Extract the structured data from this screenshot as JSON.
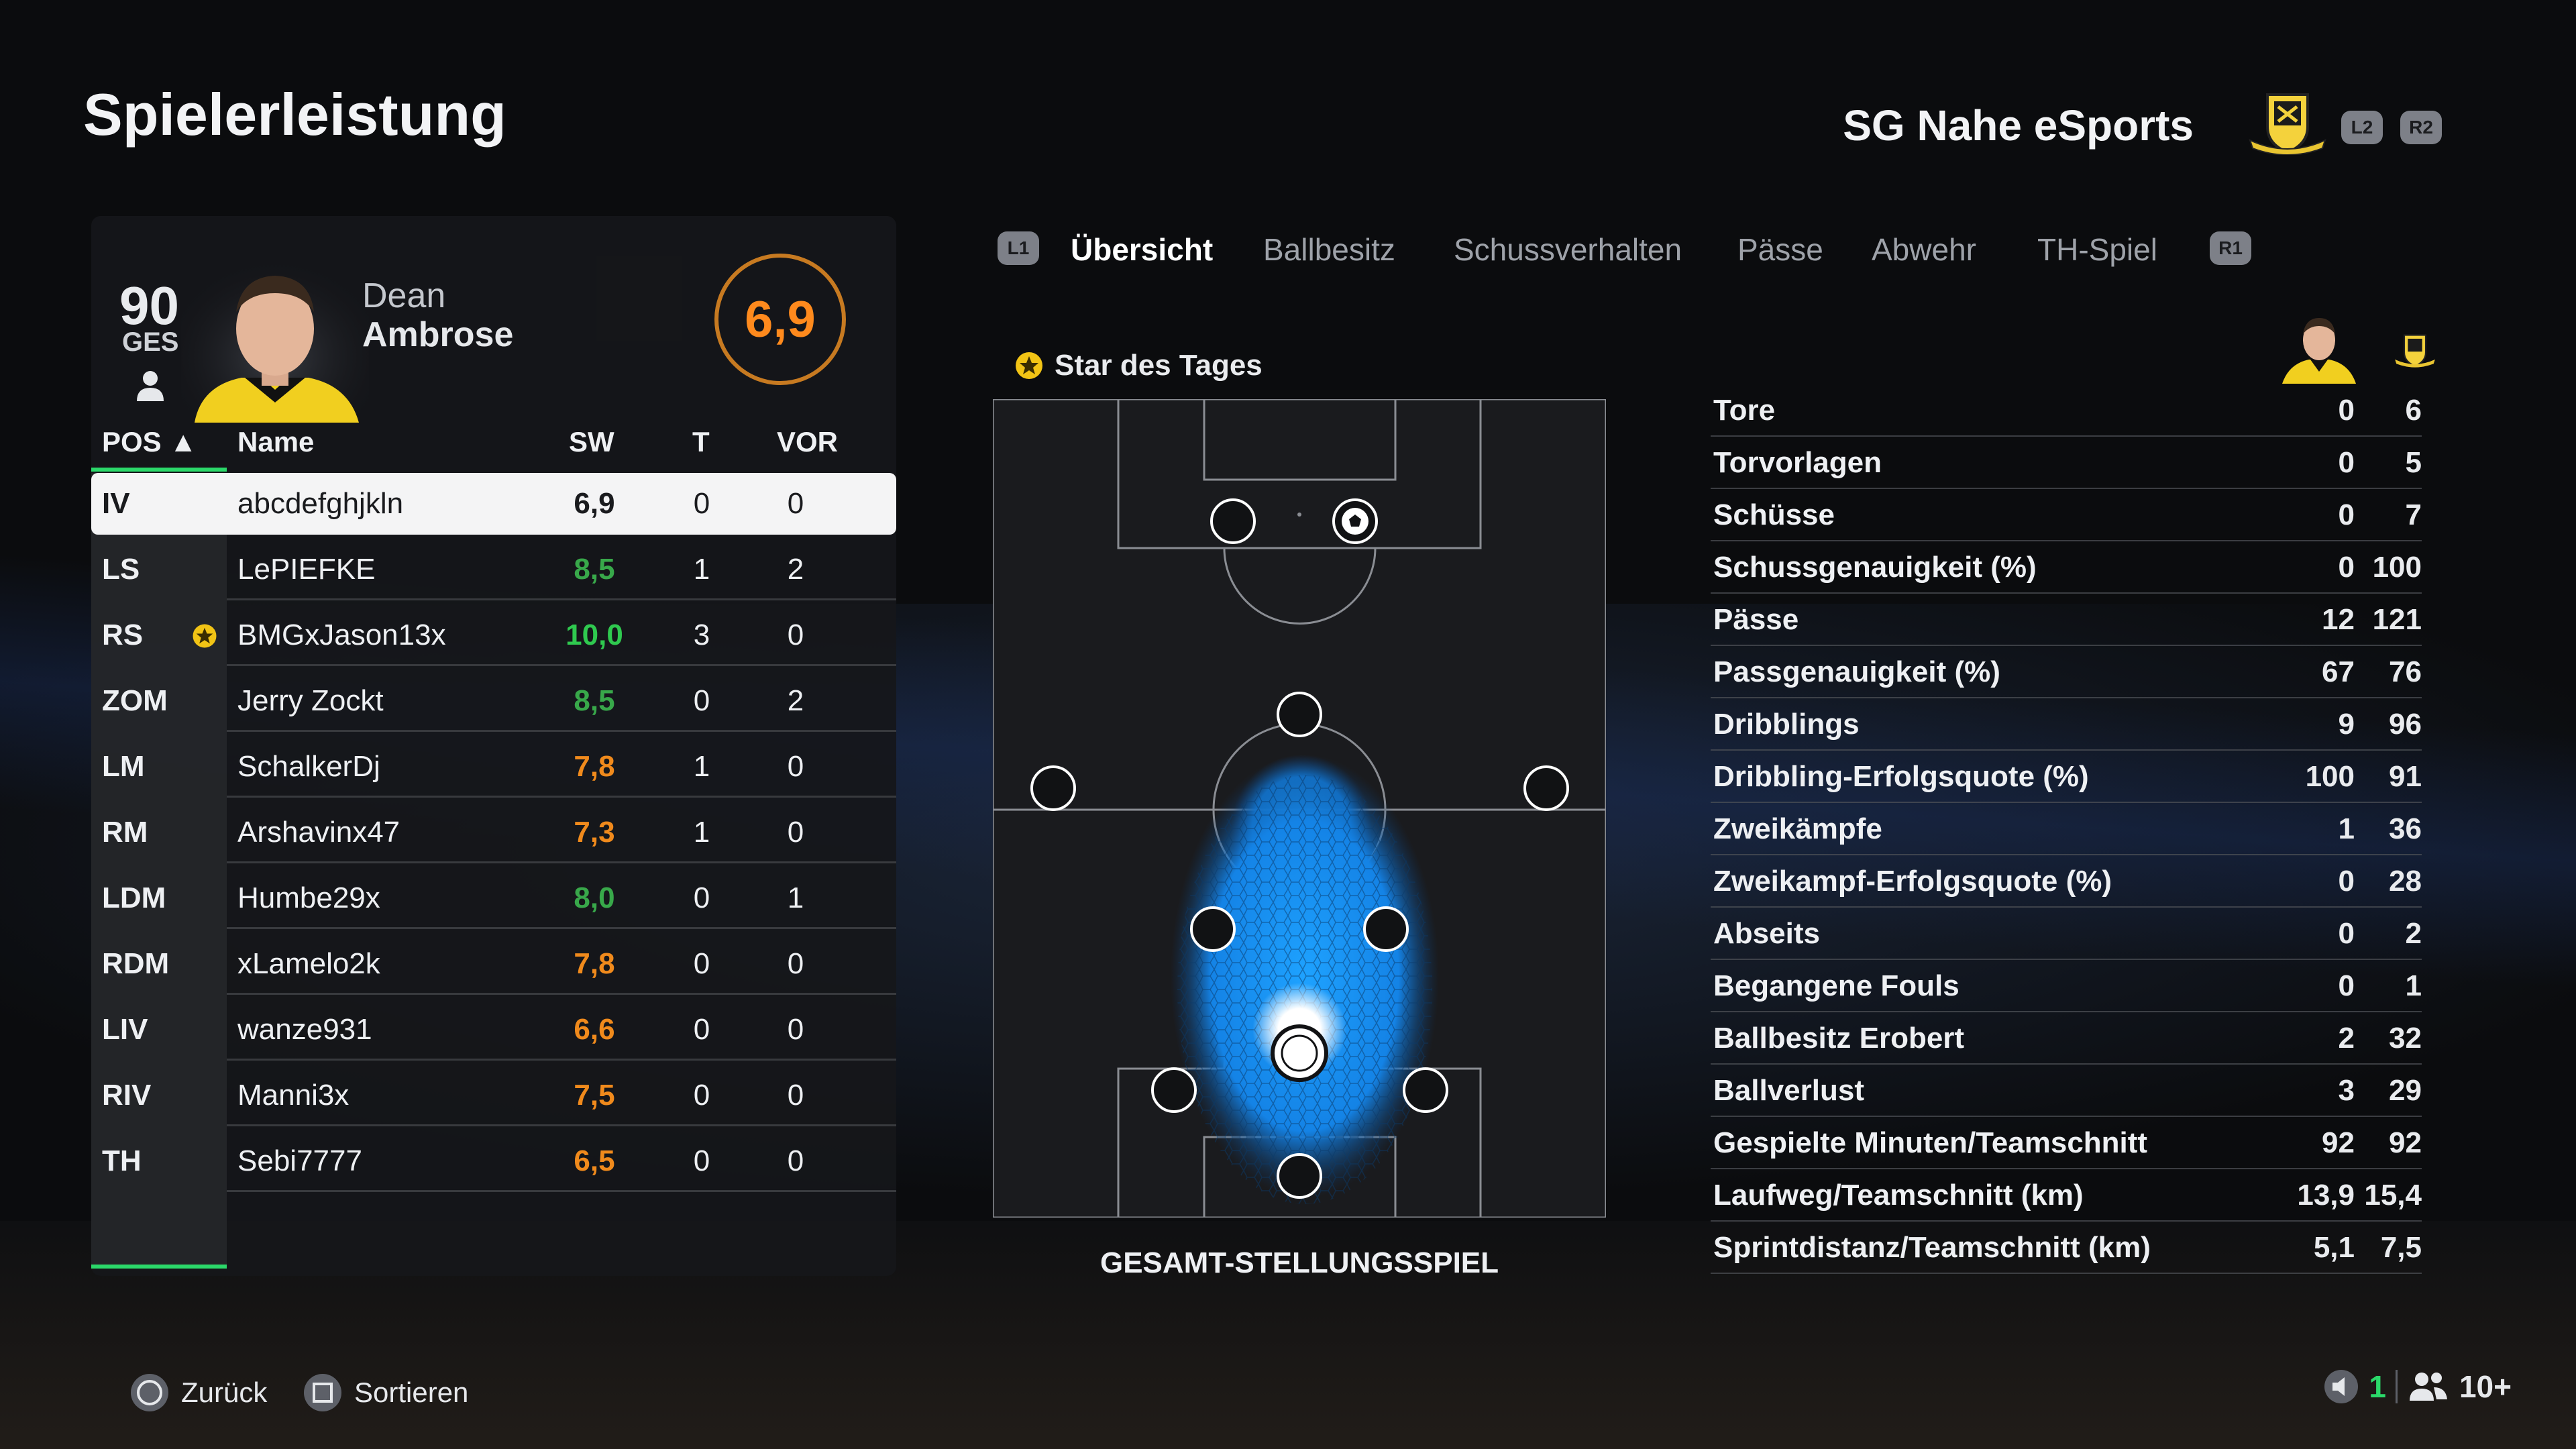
{
  "page": {
    "title": "Spielerleistung",
    "team_name": "SG Nahe eSports"
  },
  "top_buttons": {
    "l2": "L2",
    "r2": "R2",
    "l1": "L1",
    "r1": "R1"
  },
  "player_card": {
    "overall": "90",
    "ovr_label": "GES",
    "first_name": "Dean",
    "last_name": "Ambrose",
    "rating": "6,9"
  },
  "table": {
    "headers": {
      "pos": "POS ▲",
      "name": "Name",
      "sw": "SW",
      "t": "T",
      "vor": "VOR"
    },
    "rows": [
      {
        "pos": "IV",
        "name": "abcdefghjkln",
        "sw": "6,9",
        "t": "0",
        "vor": "0",
        "selected": true
      },
      {
        "pos": "LS",
        "name": "LePIEFKE",
        "sw": "8,5",
        "t": "1",
        "vor": "2"
      },
      {
        "pos": "RS",
        "name": "BMGxJason13x",
        "sw": "10,0",
        "t": "3",
        "vor": "0",
        "star": true
      },
      {
        "pos": "ZOM",
        "name": "Jerry Zockt",
        "sw": "8,5",
        "t": "0",
        "vor": "2"
      },
      {
        "pos": "LM",
        "name": "SchalkerDj",
        "sw": "7,8",
        "t": "1",
        "vor": "0"
      },
      {
        "pos": "RM",
        "name": "Arshavinx47",
        "sw": "7,3",
        "t": "1",
        "vor": "0"
      },
      {
        "pos": "LDM",
        "name": "Humbe29x",
        "sw": "8,0",
        "t": "0",
        "vor": "1"
      },
      {
        "pos": "RDM",
        "name": "xLamelo2k",
        "sw": "7,8",
        "t": "0",
        "vor": "0"
      },
      {
        "pos": "LIV",
        "name": "wanze931",
        "sw": "6,6",
        "t": "0",
        "vor": "0"
      },
      {
        "pos": "RIV",
        "name": "Manni3x",
        "sw": "7,5",
        "t": "0",
        "vor": "0"
      },
      {
        "pos": "TH",
        "name": "Sebi7777",
        "sw": "6,5",
        "t": "0",
        "vor": "0"
      }
    ]
  },
  "tabs": [
    "Übersicht",
    "Ballbesitz",
    "Schussverhalten",
    "Pässe",
    "Abwehr",
    "TH-Spiel"
  ],
  "active_tab": "Übersicht",
  "star_of_day": "Star des Tages",
  "pitch_caption": "GESAMT-STELLUNGSSPIEL",
  "stats": [
    {
      "label": "Tore",
      "player": "0",
      "team": "6"
    },
    {
      "label": "Torvorlagen",
      "player": "0",
      "team": "5"
    },
    {
      "label": "Schüsse",
      "player": "0",
      "team": "7"
    },
    {
      "label": "Schussgenauigkeit (%)",
      "player": "0",
      "team": "100"
    },
    {
      "label": "Pässe",
      "player": "12",
      "team": "121"
    },
    {
      "label": "Passgenauigkeit (%)",
      "player": "67",
      "team": "76"
    },
    {
      "label": "Dribblings",
      "player": "9",
      "team": "96"
    },
    {
      "label": "Dribbling-Erfolgsquote (%)",
      "player": "100",
      "team": "91"
    },
    {
      "label": "Zweikämpfe",
      "player": "1",
      "team": "36"
    },
    {
      "label": "Zweikampf-Erfolgsquote (%)",
      "player": "0",
      "team": "28"
    },
    {
      "label": "Abseits",
      "player": "0",
      "team": "2"
    },
    {
      "label": "Begangene Fouls",
      "player": "0",
      "team": "1"
    },
    {
      "label": "Ballbesitz Erobert",
      "player": "2",
      "team": "32"
    },
    {
      "label": "Ballverlust",
      "player": "3",
      "team": "29"
    },
    {
      "label": "Gespielte Minuten/Teamschnitt",
      "player": "92",
      "team": "92"
    },
    {
      "label": "Laufweg/Teamschnitt (km)",
      "player": "13,9",
      "team": "15,4"
    },
    {
      "label": "Sprintdistanz/Teamschnitt (km)",
      "player": "5,1",
      "team": "7,5"
    }
  ],
  "footer": {
    "back": "Zurück",
    "sort": "Sortieren",
    "voice_count": "1",
    "party_count": "10+"
  },
  "colors": {
    "accent_green": "#2bd96a",
    "rating_orange": "#ff8a1d",
    "sw_green": "#2fc94f",
    "sw_dark_green": "#38a84a",
    "sw_orange": "#f08a1c",
    "heat_blue": "#1e9bff"
  }
}
